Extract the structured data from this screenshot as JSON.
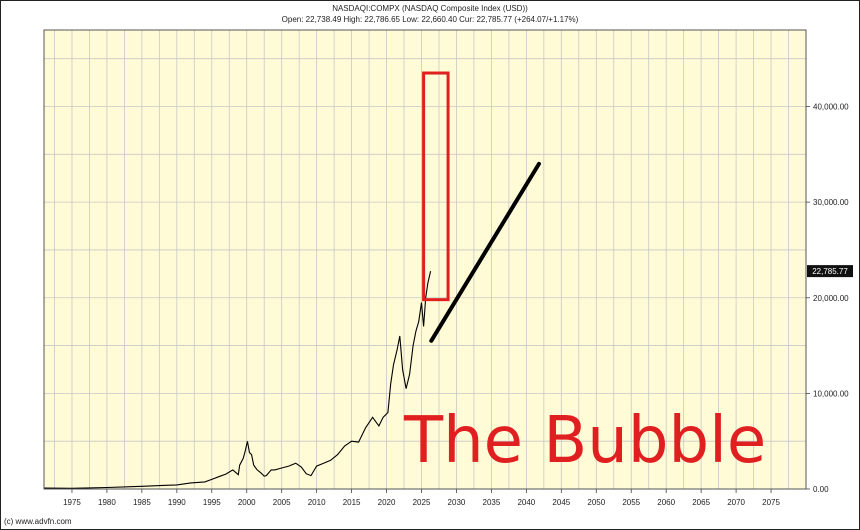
{
  "chart_data": {
    "type": "line",
    "title": "NASDAQI:COMPX (NASDAQ Composite Index (USD))",
    "subtitle": "Open: 22,738.49 High: 22,786.65 Low: 22,660.40 Cur: 22,785.77 (+264.07/+1.17%)",
    "xlabel": "",
    "ylabel": "",
    "x_ticks": [
      "1975",
      "1980",
      "1985",
      "1990",
      "1995",
      "2000",
      "2005",
      "2010",
      "2015",
      "2020",
      "2025",
      "2030",
      "2035",
      "2040",
      "2045",
      "2050",
      "2055",
      "2060",
      "2065",
      "2070",
      "2075"
    ],
    "y_ticks": [
      "0.00",
      "10,000.00",
      "20,000.00",
      "30,000.00",
      "40,000.00"
    ],
    "xlim": [
      1971,
      2080
    ],
    "ylim": [
      0,
      48000
    ],
    "grid": true,
    "current_value_label": "22,785.77",
    "current_value": 22785.77,
    "series": [
      {
        "x": [
          1971,
          1975,
          1980,
          1985,
          1988,
          1990,
          1992,
          1994,
          1995,
          1996,
          1997,
          1998,
          1998.8,
          1999,
          1999.5,
          1999.8,
          2000.1,
          2000.4,
          2000.7,
          2001,
          2001.5,
          2002,
          2002.5,
          2002.8,
          2003.5,
          2004,
          2005,
          2006,
          2007,
          2007.8,
          2008.5,
          2009.2,
          2010,
          2011,
          2012,
          2013,
          2014,
          2015,
          2016,
          2017,
          2018,
          2018.9,
          2019.5,
          2020.2,
          2020.6,
          2021,
          2021.5,
          2021.9,
          2022.3,
          2022.8,
          2023.3,
          2023.8,
          2024.2,
          2024.6,
          2025,
          2025.3,
          2025.6,
          2025.9,
          2026.3
        ],
        "y": [
          100,
          75,
          160,
          280,
          380,
          430,
          640,
          740,
          1000,
          1290,
          1560,
          2000,
          1500,
          2500,
          3200,
          4000,
          5000,
          3800,
          3600,
          2500,
          2000,
          1700,
          1350,
          1400,
          2000,
          2000,
          2200,
          2400,
          2700,
          2300,
          1600,
          1400,
          2400,
          2700,
          3000,
          3600,
          4500,
          5000,
          4900,
          6400,
          7500,
          6600,
          7500,
          8000,
          11000,
          13000,
          14500,
          16000,
          12500,
          10500,
          12000,
          15000,
          16500,
          17500,
          19500,
          17000,
          20000,
          21500,
          22785.77
        ]
      }
    ],
    "annotations": {
      "bubble_text": "The Bubble",
      "highlight_box": {
        "x": [
          2025.3,
          2028.8
        ],
        "y": [
          19800,
          43500
        ]
      },
      "trend_line": {
        "x": [
          2026.4,
          2041.8
        ],
        "y": [
          15500,
          34000
        ]
      }
    },
    "colors": {
      "plot_background": "#fffbd6",
      "grid": "#c8c8c8",
      "series": "#000000",
      "highlight": "#e02020"
    }
  },
  "footer": {
    "copyright": "(c) www.advfn.com"
  }
}
